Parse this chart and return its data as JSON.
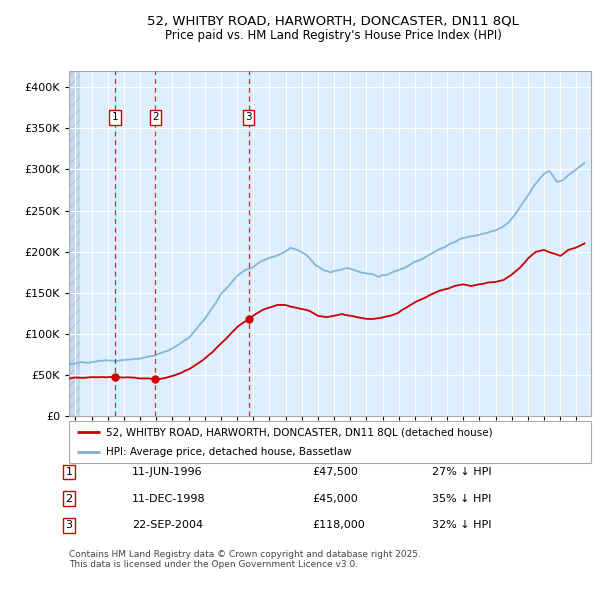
{
  "title1": "52, WHITBY ROAD, HARWORTH, DONCASTER, DN11 8QL",
  "title2": "Price paid vs. HM Land Registry's House Price Index (HPI)",
  "background_plot": "#ddeeff",
  "background_hatch_color": "#c5d8ec",
  "red_line_color": "#cc0000",
  "blue_line_color": "#7ab0d4",
  "sale_dates_num": [
    1996.44,
    1998.94,
    2004.73
  ],
  "sale_prices": [
    47500,
    45000,
    118000
  ],
  "sale_labels": [
    "1",
    "2",
    "3"
  ],
  "legend_red": "52, WHITBY ROAD, HARWORTH, DONCASTER, DN11 8QL (detached house)",
  "legend_blue": "HPI: Average price, detached house, Bassetlaw",
  "table_data": [
    [
      "1",
      "11-JUN-1996",
      "£47,500",
      "27% ↓ HPI"
    ],
    [
      "2",
      "11-DEC-1998",
      "£45,000",
      "35% ↓ HPI"
    ],
    [
      "3",
      "22-SEP-2004",
      "£118,000",
      "32% ↓ HPI"
    ]
  ],
  "footer": "Contains HM Land Registry data © Crown copyright and database right 2025.\nThis data is licensed under the Open Government Licence v3.0.",
  "ylim": [
    0,
    420000
  ],
  "xlim_start": 1993.6,
  "xlim_end": 2025.9,
  "yticks": [
    0,
    50000,
    100000,
    150000,
    200000,
    250000,
    300000,
    350000,
    400000
  ],
  "ytick_labels": [
    "£0",
    "£50K",
    "£100K",
    "£150K",
    "£200K",
    "£250K",
    "£300K",
    "£350K",
    "£400K"
  ],
  "xticks": [
    1994,
    1995,
    1996,
    1997,
    1998,
    1999,
    2000,
    2001,
    2002,
    2003,
    2004,
    2005,
    2006,
    2007,
    2008,
    2009,
    2010,
    2011,
    2012,
    2013,
    2014,
    2015,
    2016,
    2017,
    2018,
    2019,
    2020,
    2021,
    2022,
    2023,
    2024,
    2025
  ],
  "hpi_anchors": [
    [
      1993.6,
      63000
    ],
    [
      1994.0,
      64000
    ],
    [
      1994.5,
      65000
    ],
    [
      1995.0,
      66000
    ],
    [
      1996.0,
      67000
    ],
    [
      1997.0,
      68000
    ],
    [
      1998.0,
      70000
    ],
    [
      1999.0,
      74000
    ],
    [
      2000.0,
      82000
    ],
    [
      2001.0,
      95000
    ],
    [
      2002.0,
      118000
    ],
    [
      2003.0,
      148000
    ],
    [
      2004.0,
      170000
    ],
    [
      2004.5,
      178000
    ],
    [
      2005.0,
      182000
    ],
    [
      2005.5,
      188000
    ],
    [
      2006.0,
      192000
    ],
    [
      2006.5,
      196000
    ],
    [
      2007.0,
      200000
    ],
    [
      2007.3,
      205000
    ],
    [
      2007.8,
      202000
    ],
    [
      2008.3,
      196000
    ],
    [
      2008.8,
      185000
    ],
    [
      2009.3,
      178000
    ],
    [
      2009.8,
      175000
    ],
    [
      2010.3,
      178000
    ],
    [
      2010.8,
      180000
    ],
    [
      2011.3,
      177000
    ],
    [
      2011.8,
      174000
    ],
    [
      2012.3,
      172000
    ],
    [
      2012.8,
      170000
    ],
    [
      2013.3,
      172000
    ],
    [
      2013.8,
      176000
    ],
    [
      2014.3,
      180000
    ],
    [
      2014.8,
      185000
    ],
    [
      2015.3,
      190000
    ],
    [
      2015.8,
      195000
    ],
    [
      2016.3,
      200000
    ],
    [
      2016.8,
      205000
    ],
    [
      2017.3,
      210000
    ],
    [
      2017.8,
      215000
    ],
    [
      2018.3,
      218000
    ],
    [
      2018.8,
      220000
    ],
    [
      2019.3,
      222000
    ],
    [
      2019.8,
      225000
    ],
    [
      2020.3,
      228000
    ],
    [
      2020.8,
      235000
    ],
    [
      2021.3,
      248000
    ],
    [
      2021.8,
      262000
    ],
    [
      2022.3,
      278000
    ],
    [
      2022.8,
      290000
    ],
    [
      2023.0,
      295000
    ],
    [
      2023.3,
      298000
    ],
    [
      2023.8,
      285000
    ],
    [
      2024.3,
      290000
    ],
    [
      2024.8,
      298000
    ],
    [
      2025.5,
      308000
    ]
  ],
  "red_anchors": [
    [
      1993.6,
      46000
    ],
    [
      1994.0,
      46500
    ],
    [
      1995.0,
      47000
    ],
    [
      1996.0,
      47500
    ],
    [
      1996.44,
      47500
    ],
    [
      1997.0,
      47000
    ],
    [
      1998.0,
      46000
    ],
    [
      1998.94,
      45000
    ],
    [
      1999.5,
      46000
    ],
    [
      2000.0,
      49000
    ],
    [
      2000.5,
      52000
    ],
    [
      2001.0,
      57000
    ],
    [
      2001.5,
      63000
    ],
    [
      2002.0,
      70000
    ],
    [
      2002.5,
      78000
    ],
    [
      2003.0,
      88000
    ],
    [
      2003.5,
      98000
    ],
    [
      2004.0,
      108000
    ],
    [
      2004.73,
      118000
    ],
    [
      2005.0,
      122000
    ],
    [
      2005.5,
      128000
    ],
    [
      2006.0,
      132000
    ],
    [
      2006.5,
      135000
    ],
    [
      2007.0,
      135000
    ],
    [
      2007.5,
      132000
    ],
    [
      2008.0,
      130000
    ],
    [
      2008.5,
      128000
    ],
    [
      2009.0,
      122000
    ],
    [
      2009.5,
      120000
    ],
    [
      2010.0,
      122000
    ],
    [
      2010.5,
      124000
    ],
    [
      2011.0,
      122000
    ],
    [
      2011.5,
      120000
    ],
    [
      2012.0,
      118000
    ],
    [
      2012.5,
      118000
    ],
    [
      2013.0,
      120000
    ],
    [
      2013.5,
      122000
    ],
    [
      2014.0,
      126000
    ],
    [
      2014.5,
      132000
    ],
    [
      2015.0,
      138000
    ],
    [
      2015.5,
      143000
    ],
    [
      2016.0,
      148000
    ],
    [
      2016.5,
      152000
    ],
    [
      2017.0,
      155000
    ],
    [
      2017.5,
      158000
    ],
    [
      2018.0,
      160000
    ],
    [
      2018.5,
      158000
    ],
    [
      2019.0,
      160000
    ],
    [
      2019.5,
      162000
    ],
    [
      2020.0,
      163000
    ],
    [
      2020.5,
      165000
    ],
    [
      2021.0,
      172000
    ],
    [
      2021.5,
      180000
    ],
    [
      2022.0,
      192000
    ],
    [
      2022.5,
      200000
    ],
    [
      2023.0,
      202000
    ],
    [
      2023.5,
      198000
    ],
    [
      2024.0,
      195000
    ],
    [
      2024.5,
      202000
    ],
    [
      2025.0,
      205000
    ],
    [
      2025.5,
      210000
    ]
  ]
}
